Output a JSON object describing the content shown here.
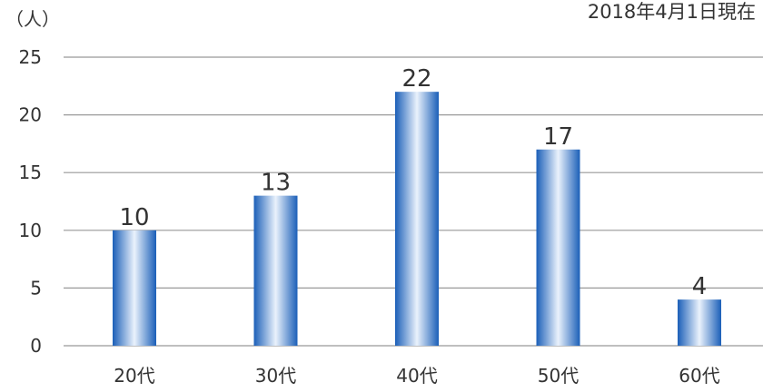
{
  "chart_data": {
    "type": "bar",
    "unit_label": "（人）",
    "as_of": "2018年4月1日現在",
    "categories": [
      "20代",
      "30代",
      "40代",
      "50代",
      "60代"
    ],
    "values": [
      10,
      13,
      22,
      17,
      4
    ],
    "data_labels": [
      "10",
      "13",
      "22",
      "17",
      "4"
    ],
    "ylim": [
      0,
      25
    ],
    "yticks": [
      0,
      5,
      10,
      15,
      20,
      25
    ],
    "grid": true,
    "legend": "none",
    "colors": {
      "bar_dark": "#1b5fb8",
      "bar_light": "#eaf2fc",
      "grid": "#999999",
      "text": "#333333"
    }
  }
}
